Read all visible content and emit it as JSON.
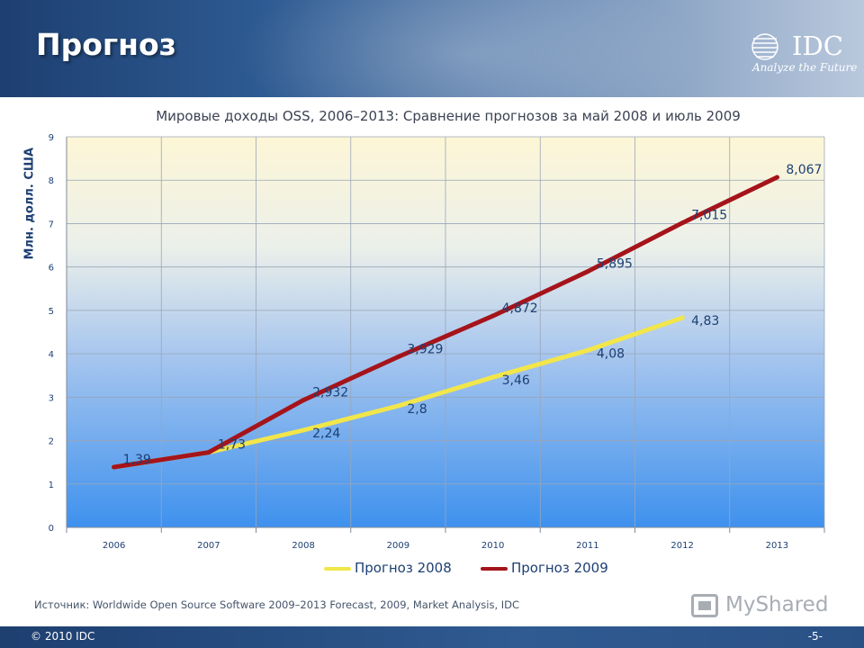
{
  "slide": {
    "title": "Прогноз",
    "logo": {
      "word": "IDC",
      "tagline": "Analyze the Future"
    },
    "source": "Источник: Worldwide Open Source Software 2009–2013 Forecast, 2009, Market Analysis, IDC",
    "footer": {
      "copyright": "© 2010 IDC",
      "page": "-5-"
    },
    "watermark": "MyShared"
  },
  "chart_data": {
    "type": "line",
    "title": "Мировые доходы OSS, 2006–2013: Сравнение прогнозов за май 2008 и июль 2009",
    "xlabel": "",
    "ylabel": "Млн. долл. США",
    "categories": [
      "2006",
      "2007",
      "2008",
      "2009",
      "2010",
      "2011",
      "2012",
      "2013"
    ],
    "ylim": [
      0,
      9
    ],
    "yticks": [
      0,
      1,
      2,
      3,
      4,
      5,
      6,
      7,
      8,
      9
    ],
    "grid": true,
    "legend_position": "bottom",
    "series": [
      {
        "name": "Прогноз 2008",
        "color": "#f2e64a",
        "values": [
          1.39,
          1.73,
          2.24,
          2.8,
          3.46,
          4.08,
          4.83,
          null
        ],
        "labels": [
          "",
          "",
          "2,24",
          "2,8",
          "3,46",
          "4,08",
          "4,83",
          ""
        ]
      },
      {
        "name": "Прогноз 2009",
        "color": "#a5141a",
        "values": [
          1.39,
          1.73,
          2.932,
          3.929,
          4.872,
          5.895,
          7.015,
          8.067
        ],
        "labels": [
          "1,39",
          "1,73",
          "2,932",
          "3,929",
          "4,872",
          "5,895",
          "7,015",
          "8,067"
        ]
      }
    ]
  }
}
